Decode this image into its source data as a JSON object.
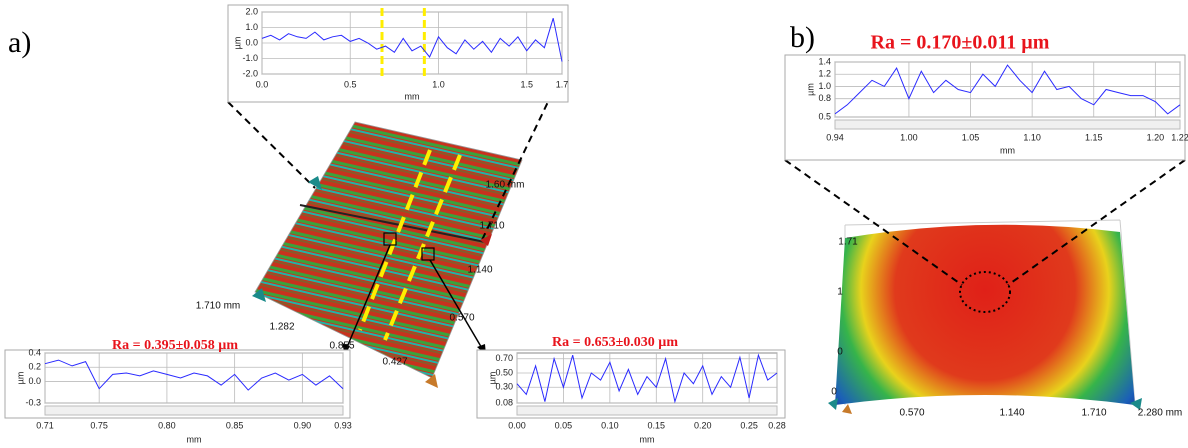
{
  "panel_labels": [
    "a)",
    "b)"
  ],
  "surface_a": {
    "axis_labels": [
      "1.60 mm",
      "1.710",
      "1.140",
      "0.570",
      "1.710 mm",
      "1.282",
      "0.855",
      "0.427"
    ]
  },
  "surface_b": {
    "axis_labels": [
      "1.71",
      "1",
      "0",
      "0",
      "0.570",
      "1.140",
      "1.710",
      "2.280 mm"
    ]
  },
  "chart_data": [
    {
      "type": "line",
      "x_label": "mm",
      "y_label": "µm",
      "color": "#2a2aff",
      "grid": true,
      "x": [
        0,
        0.05,
        0.1,
        0.15,
        0.2,
        0.25,
        0.3,
        0.35,
        0.4,
        0.45,
        0.5,
        0.55,
        0.6,
        0.65,
        0.7,
        0.75,
        0.8,
        0.85,
        0.9,
        0.95,
        1.0,
        1.05,
        1.1,
        1.15,
        1.2,
        1.25,
        1.3,
        1.35,
        1.4,
        1.45,
        1.5,
        1.55,
        1.6,
        1.65,
        1.7
      ],
      "values": [
        0.3,
        0.5,
        0.2,
        0.6,
        0.4,
        0.3,
        0.7,
        0.2,
        0.4,
        0.5,
        0.1,
        0.3,
        0.0,
        -0.4,
        -0.2,
        -0.6,
        0.3,
        -0.5,
        -0.2,
        -0.9,
        0.4,
        -0.3,
        -0.7,
        0.2,
        -0.4,
        0.1,
        -0.6,
        0.3,
        -0.2,
        0.4,
        -0.5,
        0.2,
        -0.3,
        1.6,
        -1.2
      ],
      "xlim": [
        0,
        1.7
      ],
      "xticks": [
        {
          "value": 0,
          "label": "0.0"
        },
        0.5,
        {
          "value": 1,
          "label": "1.0"
        },
        1.5,
        1.7
      ],
      "ylim": [
        -2,
        2
      ],
      "yticks": [
        {
          "value": 2,
          "label": "2.0"
        },
        {
          "value": 1,
          "label": "1.0"
        },
        {
          "value": 0,
          "label": "0.0"
        },
        {
          "value": -1,
          "label": "-1.0"
        },
        {
          "value": -2,
          "label": "-2.0"
        }
      ],
      "highlight_x": [
        0.68,
        0.92
      ],
      "highlight_color": "#ffee00"
    },
    {
      "type": "line",
      "title": "Ra = 0.395±0.058 µm",
      "x_label": "mm",
      "y_label": "µm",
      "color": "#2a2aff",
      "grid": true,
      "x": [
        0.71,
        0.72,
        0.73,
        0.74,
        0.75,
        0.76,
        0.77,
        0.78,
        0.79,
        0.8,
        0.81,
        0.82,
        0.83,
        0.84,
        0.85,
        0.86,
        0.87,
        0.88,
        0.89,
        0.9,
        0.91,
        0.92,
        0.93
      ],
      "values": [
        0.25,
        0.3,
        0.22,
        0.28,
        -0.1,
        0.1,
        0.12,
        0.08,
        0.15,
        0.1,
        0.05,
        0.12,
        0.08,
        -0.05,
        0.1,
        -0.12,
        0.05,
        0.12,
        0.02,
        0.1,
        -0.05,
        0.08,
        -0.1
      ],
      "xlim": [
        0.71,
        0.93
      ],
      "xticks": [
        0.71,
        0.75,
        {
          "value": 0.8,
          "label": "0.80"
        },
        0.85,
        {
          "value": 0.9,
          "label": "0.90"
        },
        0.93
      ],
      "ylim": [
        -0.3,
        0.4
      ],
      "yticks": [
        0.4,
        0.2,
        {
          "value": 0,
          "label": "0.0"
        },
        -0.3
      ]
    },
    {
      "type": "line",
      "title": "Ra = 0.653±0.030 µm",
      "x_label": "mm",
      "y_label": "µm",
      "color": "#2a2aff",
      "grid": true,
      "x": [
        0,
        0.01,
        0.02,
        0.03,
        0.04,
        0.05,
        0.06,
        0.07,
        0.08,
        0.09,
        0.1,
        0.11,
        0.12,
        0.13,
        0.14,
        0.15,
        0.16,
        0.17,
        0.18,
        0.19,
        0.2,
        0.21,
        0.22,
        0.23,
        0.24,
        0.25,
        0.26,
        0.27,
        0.28
      ],
      "values": [
        0.35,
        0.2,
        0.6,
        0.1,
        0.7,
        0.3,
        0.75,
        0.15,
        0.5,
        0.4,
        0.65,
        0.25,
        0.55,
        0.2,
        0.45,
        0.3,
        0.7,
        0.1,
        0.5,
        0.35,
        0.6,
        0.2,
        0.45,
        0.3,
        0.72,
        0.15,
        0.75,
        0.4,
        0.5
      ],
      "xlim": [
        0,
        0.28
      ],
      "xticks": [
        {
          "value": 0,
          "label": "0.00"
        },
        0.05,
        {
          "value": 0.1,
          "label": "0.10"
        },
        0.15,
        {
          "value": 0.2,
          "label": "0.20"
        },
        0.25,
        0.28
      ],
      "ylim": [
        0.08,
        0.78
      ],
      "yticks": [
        {
          "value": 0.7,
          "label": "0.70"
        },
        {
          "value": 0.5,
          "label": "0.50"
        },
        {
          "value": 0.3,
          "label": "0.30"
        },
        0.08
      ]
    },
    {
      "type": "line",
      "title": "Ra = 0.170±0.011 µm",
      "x_label": "mm",
      "y_label": "µm",
      "color": "#2a2aff",
      "grid": true,
      "x": [
        0.94,
        0.95,
        0.96,
        0.97,
        0.98,
        0.99,
        1.0,
        1.01,
        1.02,
        1.03,
        1.04,
        1.05,
        1.06,
        1.07,
        1.08,
        1.09,
        1.1,
        1.11,
        1.12,
        1.13,
        1.14,
        1.15,
        1.16,
        1.17,
        1.18,
        1.19,
        1.2,
        1.21,
        1.22
      ],
      "values": [
        0.55,
        0.7,
        0.9,
        1.1,
        1.0,
        1.3,
        0.8,
        1.25,
        0.9,
        1.1,
        0.95,
        0.9,
        1.2,
        1.0,
        1.35,
        1.1,
        0.9,
        1.25,
        0.95,
        1.0,
        0.8,
        0.7,
        0.95,
        0.9,
        0.85,
        0.85,
        0.75,
        0.55,
        0.7
      ],
      "xlim": [
        0.94,
        1.22
      ],
      "xticks": [
        0.94,
        {
          "value": 1,
          "label": "1.00"
        },
        1.05,
        {
          "value": 1.1,
          "label": "1.10"
        },
        1.15,
        {
          "value": 1.2,
          "label": "1.20"
        },
        1.22
      ],
      "ylim": [
        0.5,
        1.4
      ],
      "yticks": [
        1.4,
        1.2,
        {
          "value": 1,
          "label": "1.0"
        },
        0.8,
        0.5
      ]
    }
  ]
}
